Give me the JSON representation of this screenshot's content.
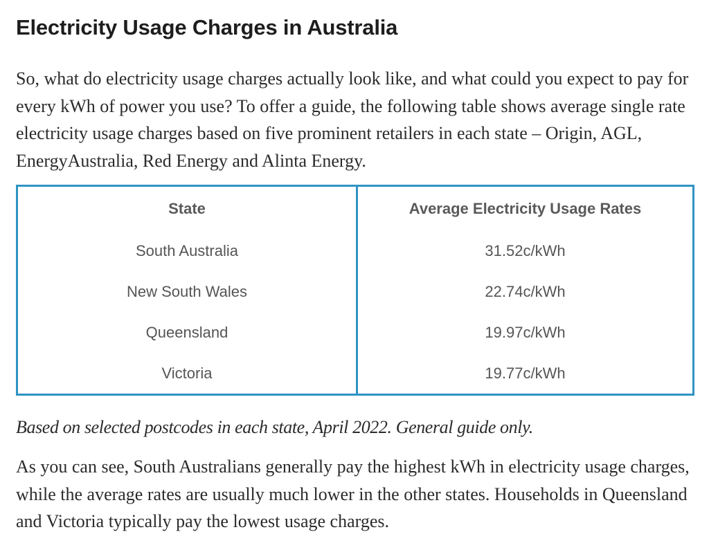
{
  "article": {
    "heading": "Electricity Usage Charges in Australia",
    "intro": "So, what do electricity usage charges actually look like, and what could you expect to pay for every kWh of power you use? To offer a guide, the following table shows average single rate electricity usage charges based on five prominent retailers in each state – Origin, AGL, EnergyAustralia, Red Energy and Alinta Energy.",
    "caption": "Based on selected postcodes in each state, April 2022. General guide only.",
    "outro": "As you can see, South Australians generally pay the highest kWh in electricity usage charges, while the average rates are usually much lower in the other states. Households in Queensland and Victoria typically pay the lowest usage charges."
  },
  "table": {
    "headers": [
      "State",
      "Average Electricity Usage Rates"
    ],
    "rows": [
      [
        "South Australia",
        "31.52c/kWh"
      ],
      [
        "New South Wales",
        "22.74c/kWh"
      ],
      [
        "Queensland",
        "19.97c/kWh"
      ],
      [
        "Victoria",
        "19.77c/kWh"
      ]
    ],
    "border_color": "#2f93c3"
  }
}
